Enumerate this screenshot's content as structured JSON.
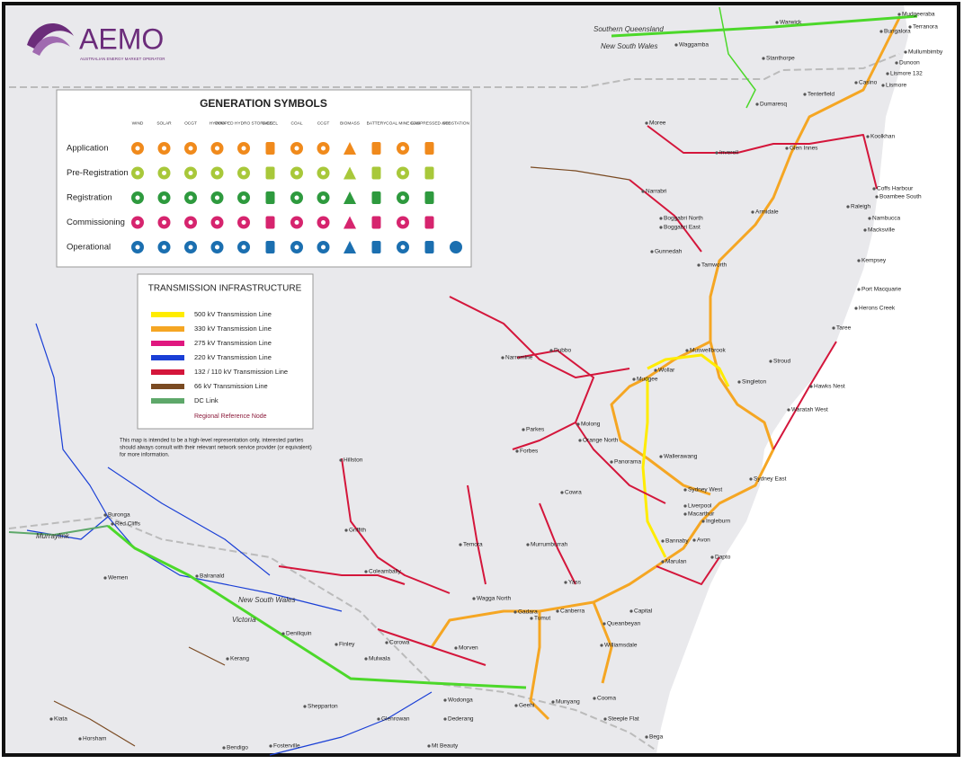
{
  "logo": {
    "name": "AEMO",
    "subtitle": "AUSTRALIAN ENERGY MARKET OPERATOR"
  },
  "generation_symbols": {
    "title": "GENERATION SYMBOLS",
    "columns": [
      "WIND",
      "SOLAR",
      "OCGT",
      "HYDRO",
      "PUMPED HYDRO STORAGE",
      "DIESEL",
      "COAL",
      "CCGT",
      "BIOMASS",
      "BATTERY",
      "COAL MINE GAS",
      "COMPRESSED AIR",
      "SUBSTATION"
    ],
    "rows": [
      {
        "label": "Application",
        "color": "#f08a1c"
      },
      {
        "label": "Pre-Registration",
        "color": "#a8c83a"
      },
      {
        "label": "Registration",
        "color": "#2e9a3e"
      },
      {
        "label": "Commissioning",
        "color": "#d6246e"
      },
      {
        "label": "Operational",
        "color": "#1b6fb0"
      }
    ]
  },
  "transmission": {
    "title": "TRANSMISSION INFRASTRUCTURE",
    "items": [
      {
        "label": "500 kV Transmission Line",
        "color": "#ffec00"
      },
      {
        "label": "330 kV Transmission Line",
        "color": "#f5a623"
      },
      {
        "label": "275 kV Transmission Line",
        "color": "#e0177f"
      },
      {
        "label": "220 kV Transmission Line",
        "color": "#1a3fd6"
      },
      {
        "label": "132 / 110 kV Transmission Line",
        "color": "#d4163b"
      },
      {
        "label": "66 kV Transmission Line",
        "color": "#7a4a22"
      },
      {
        "label": "DC Link",
        "color": "#5ea86a"
      }
    ],
    "reference_node": "Regional Reference Node"
  },
  "disclaimer": [
    "This map is intended to be a high-level representation only, interested parties",
    "should always consult with their relevant network service provider (or equivalent)",
    "for more information."
  ],
  "regions": [
    "Southern Queensland",
    "New South Wales",
    "New South Wales",
    "Victoria",
    "Murraylink"
  ],
  "places": [
    "Warwick",
    "Mudgeeraba",
    "Terranora",
    "Bungalora",
    "Waggamba",
    "Stanthorpe",
    "Mullumbimby",
    "Dunoon",
    "Lismore 132",
    "Casino",
    "Lismore",
    "Tenterfield",
    "Dumaresq",
    "Moree",
    "Glen Innes",
    "Inverell",
    "Koolkhan",
    "Coffs Harbour",
    "Boambee South",
    "Narrabri",
    "Raleigh",
    "Armidale",
    "Nambucca",
    "Boggabri North",
    "Boggabri East",
    "Macksville",
    "Gunnedah",
    "Kempsey",
    "Tamworth",
    "Port Macquarie",
    "Herons Creek",
    "Taree",
    "Narromine",
    "Dubbo",
    "Wollar",
    "Mudgee",
    "Muswellbrook",
    "Singleton",
    "Stroud",
    "Hawks Nest",
    "Waratah West",
    "Parkes",
    "Molong",
    "Orange North",
    "Forbes",
    "Panorama",
    "Wallerawang",
    "Sydney West",
    "Sydney East",
    "Liverpool",
    "Macarthur",
    "Ingleburn",
    "Cowra",
    "Hillston",
    "Griffith",
    "Buronga",
    "Red Cliffs",
    "Wemen",
    "Balranald",
    "Coleambally",
    "Murrumburrah",
    "Temora",
    "Wagga North",
    "Yass",
    "Gadara",
    "Tumut",
    "Canberra",
    "Queanbeyan",
    "Williamsdale",
    "Morven",
    "Deniliquin",
    "Finley",
    "Mulwala",
    "Corowa",
    "Kerang",
    "Wodonga",
    "Dederang",
    "Shepparton",
    "Glenrowan",
    "Kiata",
    "Horsham",
    "Bendigo",
    "Fosterville",
    "Mt Beauty",
    "Geehi",
    "Munyang",
    "Cooma",
    "Steeple Flat",
    "Bega",
    "Marulan",
    "Bannaby",
    "Dapto",
    "Capital",
    "Avon"
  ]
}
